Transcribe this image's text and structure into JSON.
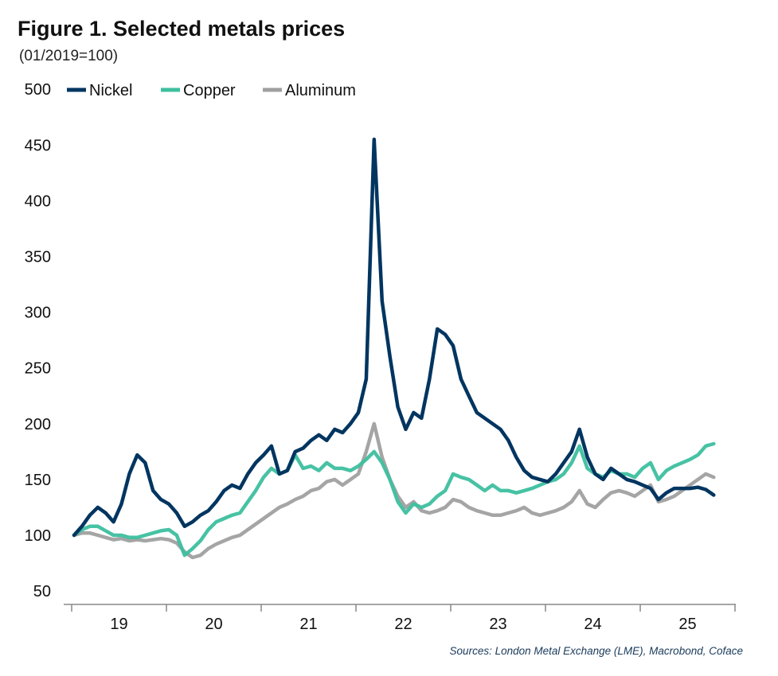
{
  "title": "Figure 1. Selected metals prices",
  "subtitle": "(01/2019=100)",
  "source": "Sources: London Metal Exchange (LME), Macrobond, Coface",
  "chart_data": {
    "type": "line",
    "title": "Figure 1. Selected metals prices",
    "subtitle": "(01/2019=100)",
    "xlabel": "",
    "ylabel": "",
    "ylim": [
      50,
      500
    ],
    "yticks": [
      50,
      100,
      150,
      200,
      250,
      300,
      350,
      400,
      450,
      500
    ],
    "xtick_labels": [
      "19",
      "20",
      "21",
      "22",
      "23",
      "24",
      "25"
    ],
    "xlim": [
      "2019-01",
      "2025-12"
    ],
    "grid": false,
    "legend_position": "top-left",
    "x": [
      "2019-01",
      "2019-02",
      "2019-03",
      "2019-04",
      "2019-05",
      "2019-06",
      "2019-07",
      "2019-08",
      "2019-09",
      "2019-10",
      "2019-11",
      "2019-12",
      "2020-01",
      "2020-02",
      "2020-03",
      "2020-04",
      "2020-05",
      "2020-06",
      "2020-07",
      "2020-08",
      "2020-09",
      "2020-10",
      "2020-11",
      "2020-12",
      "2021-01",
      "2021-02",
      "2021-03",
      "2021-04",
      "2021-05",
      "2021-06",
      "2021-07",
      "2021-08",
      "2021-09",
      "2021-10",
      "2021-11",
      "2021-12",
      "2022-01",
      "2022-02",
      "2022-03",
      "2022-04",
      "2022-05",
      "2022-06",
      "2022-07",
      "2022-08",
      "2022-09",
      "2022-10",
      "2022-11",
      "2022-12",
      "2023-01",
      "2023-02",
      "2023-03",
      "2023-04",
      "2023-05",
      "2023-06",
      "2023-07",
      "2023-08",
      "2023-09",
      "2023-10",
      "2023-11",
      "2023-12",
      "2024-01",
      "2024-02",
      "2024-03",
      "2024-04",
      "2024-05",
      "2024-06",
      "2024-07",
      "2024-08",
      "2024-09",
      "2024-10",
      "2024-11",
      "2024-12",
      "2025-01",
      "2025-02",
      "2025-03",
      "2025-04",
      "2025-05",
      "2025-06",
      "2025-07",
      "2025-08",
      "2025-09",
      "2025-10"
    ],
    "series": [
      {
        "name": "Nickel",
        "color": "#003560",
        "values": [
          100,
          108,
          118,
          125,
          120,
          112,
          128,
          155,
          172,
          165,
          140,
          132,
          128,
          120,
          108,
          112,
          118,
          122,
          130,
          140,
          145,
          142,
          155,
          165,
          172,
          180,
          155,
          158,
          175,
          178,
          185,
          190,
          185,
          195,
          192,
          200,
          210,
          240,
          455,
          310,
          260,
          215,
          195,
          210,
          205,
          240,
          285,
          280,
          270,
          240,
          225,
          210,
          205,
          200,
          195,
          185,
          170,
          158,
          152,
          150,
          148,
          155,
          165,
          175,
          195,
          170,
          155,
          150,
          160,
          155,
          150,
          148,
          145,
          142,
          132,
          138,
          142,
          142,
          142,
          143,
          141,
          136
        ]
      },
      {
        "name": "Copper",
        "color": "#3dbf9f",
        "values": [
          100,
          105,
          108,
          108,
          104,
          100,
          100,
          98,
          98,
          100,
          102,
          104,
          105,
          100,
          82,
          88,
          95,
          105,
          112,
          115,
          118,
          120,
          130,
          140,
          152,
          160,
          155,
          158,
          172,
          160,
          162,
          158,
          165,
          160,
          160,
          158,
          162,
          168,
          175,
          165,
          150,
          130,
          120,
          128,
          125,
          128,
          135,
          140,
          155,
          152,
          150,
          145,
          140,
          145,
          140,
          140,
          138,
          140,
          142,
          145,
          148,
          150,
          155,
          165,
          180,
          160,
          155,
          152,
          158,
          155,
          155,
          152,
          160,
          165,
          150,
          158,
          162,
          165,
          168,
          172,
          180,
          182
        ]
      },
      {
        "name": "Aluminum",
        "color": "#a0a0a0",
        "values": [
          100,
          102,
          102,
          100,
          98,
          96,
          97,
          95,
          96,
          95,
          96,
          97,
          96,
          93,
          85,
          80,
          82,
          88,
          92,
          95,
          98,
          100,
          105,
          110,
          115,
          120,
          125,
          128,
          132,
          135,
          140,
          142,
          148,
          150,
          145,
          150,
          155,
          175,
          200,
          170,
          150,
          135,
          125,
          130,
          122,
          120,
          122,
          125,
          132,
          130,
          125,
          122,
          120,
          118,
          118,
          120,
          122,
          125,
          120,
          118,
          120,
          122,
          125,
          130,
          140,
          128,
          125,
          132,
          138,
          140,
          138,
          135,
          140,
          145,
          130,
          132,
          135,
          140,
          145,
          150,
          155,
          152
        ]
      }
    ]
  }
}
